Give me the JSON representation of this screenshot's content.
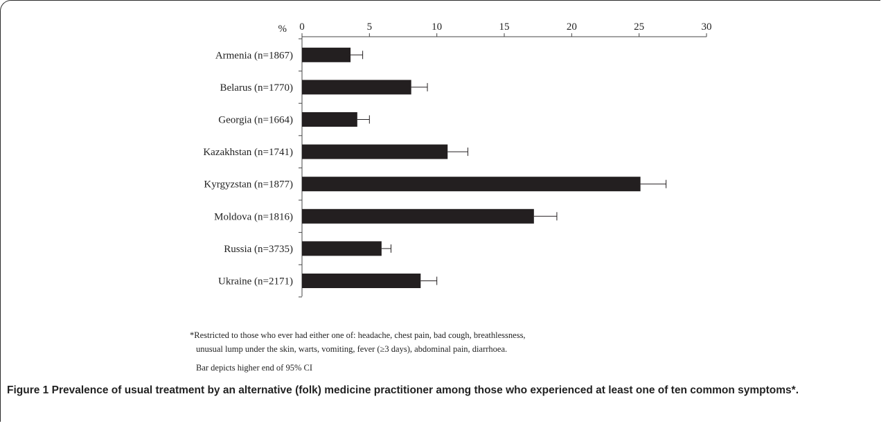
{
  "chart_data": {
    "type": "bar",
    "orientation": "horizontal",
    "unit_label": "%",
    "xlim": [
      0,
      30
    ],
    "xticks": [
      "0",
      "5",
      "10",
      "15",
      "20",
      "25",
      "30"
    ],
    "categories": [
      "Armenia (n=1867)",
      "Belarus (n=1770)",
      "Georgia (n=1664)",
      "Kazakhstan (n=1741)",
      "Kyrgyzstan (n=1877)",
      "Moldova (n=1816)",
      "Russia (n=3735)",
      "Ukraine (n=2171)"
    ],
    "values": [
      3.6,
      8.1,
      4.1,
      10.8,
      25.1,
      17.2,
      5.9,
      8.8
    ],
    "ci_upper": [
      4.5,
      9.3,
      5.0,
      12.3,
      27.0,
      18.9,
      6.6,
      10.0
    ],
    "bar_color": "#231f20",
    "grid": false
  },
  "notes": {
    "footnote_line1": "*Restricted to those who ever had either one of: headache, chest pain, bad cough, breathlessness,",
    "footnote_line2": "unusual lump under the skin, warts, vomiting, fever (≥3 days), abdominal pain, diarrhoea.",
    "bar_note": "Bar depicts higher end of 95% CI"
  },
  "caption": {
    "label": "Figure 1",
    "text": "Prevalence of usual treatment by an alternative (folk) medicine practitioner among those who experienced at least one of ten common symptoms*."
  }
}
